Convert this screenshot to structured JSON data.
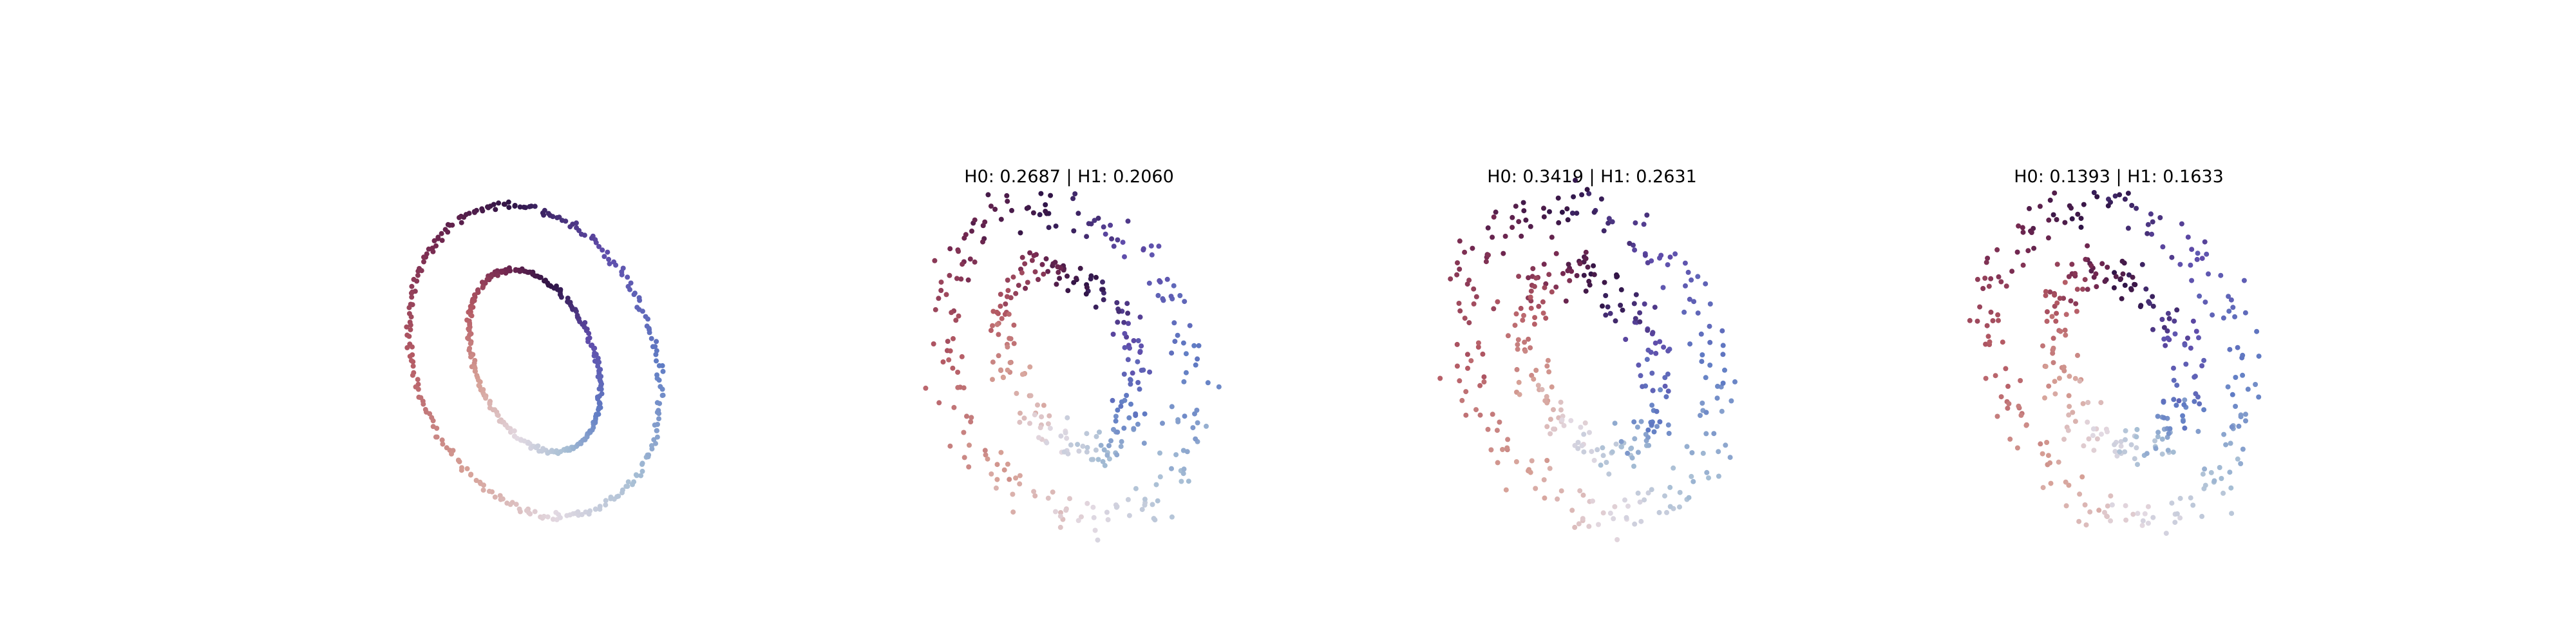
{
  "chart_data": [
    {
      "type": "scatter",
      "title": "",
      "rings": [
        {
          "name": "",
          "center": [
            0,
            0
          ],
          "radius_x": 1.0,
          "radius_y": 1.35,
          "rotation_deg": 22,
          "n": 260,
          "noise": 0.015
        },
        {
          "name": "",
          "center": [
            0,
            0
          ],
          "radius_x": 0.5,
          "radius_y": 0.8,
          "rotation_deg": 22,
          "n": 260,
          "noise": 0.01
        }
      ],
      "xlim": [
        -1.5,
        1.5
      ],
      "ylim": [
        -1.5,
        1.5
      ],
      "axis_visible": false,
      "colormap": "twilight"
    },
    {
      "type": "scatter",
      "title": "H0: 0.2687 | H1: 0.2060",
      "rings": [
        {
          "name": "",
          "center": [
            0,
            0
          ],
          "radius_x": 1.0,
          "radius_y": 1.35,
          "rotation_deg": 22,
          "n": 200,
          "noise": 0.09
        },
        {
          "name": "",
          "center": [
            0,
            0
          ],
          "radius_x": 0.5,
          "radius_y": 0.8,
          "rotation_deg": 22,
          "n": 200,
          "noise": 0.08
        }
      ],
      "xlim": [
        -1.5,
        1.5
      ],
      "ylim": [
        -1.5,
        1.5
      ],
      "axis_visible": false,
      "colormap": "twilight"
    },
    {
      "type": "scatter",
      "title": "H0: 0.3419 | H1: 0.2631",
      "rings": [
        {
          "name": "",
          "center": [
            0,
            0
          ],
          "radius_x": 1.0,
          "radius_y": 1.35,
          "rotation_deg": 22,
          "n": 200,
          "noise": 0.1
        },
        {
          "name": "",
          "center": [
            0,
            0
          ],
          "radius_x": 0.5,
          "radius_y": 0.8,
          "rotation_deg": 22,
          "n": 200,
          "noise": 0.09
        }
      ],
      "xlim": [
        -1.5,
        1.5
      ],
      "ylim": [
        -1.5,
        1.5
      ],
      "axis_visible": false,
      "colormap": "twilight"
    },
    {
      "type": "scatter",
      "title": "H0: 0.1393 | H1: 0.1633",
      "rings": [
        {
          "name": "",
          "center": [
            0,
            0
          ],
          "radius_x": 1.0,
          "radius_y": 1.35,
          "rotation_deg": 22,
          "n": 200,
          "noise": 0.1
        },
        {
          "name": "",
          "center": [
            0,
            0
          ],
          "radius_x": 0.5,
          "radius_y": 0.8,
          "rotation_deg": 22,
          "n": 200,
          "noise": 0.1
        }
      ],
      "xlim": [
        -1.5,
        1.5
      ],
      "ylim": [
        -1.5,
        1.5
      ],
      "axis_visible": false,
      "colormap": "twilight"
    }
  ]
}
